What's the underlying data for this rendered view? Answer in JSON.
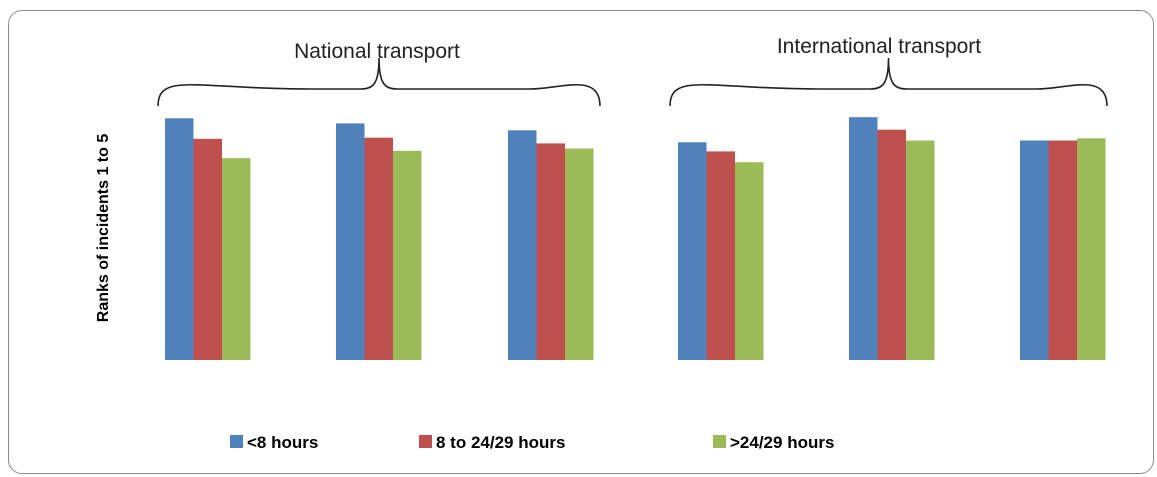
{
  "chart_data": {
    "type": "bar",
    "title": "",
    "xlabel": "",
    "ylabel": "Ranks of incidents 1 to 5",
    "ylim": [
      0,
      5
    ],
    "grid": false,
    "legend_position": "bottom",
    "categories": [
      "",
      "",
      "",
      "",
      "",
      ""
    ],
    "groups": [
      {
        "label": "National transport",
        "categories": [
          0,
          1,
          2
        ]
      },
      {
        "label": "International transport",
        "categories": [
          3,
          4,
          5
        ]
      }
    ],
    "series": [
      {
        "name": "<8 hours",
        "color": "#4f81bd",
        "values": [
          4.24,
          4.15,
          4.03,
          3.82,
          4.26,
          3.85
        ]
      },
      {
        "name": "8 to 24/29 hours",
        "color": "#c0504d",
        "values": [
          3.88,
          3.9,
          3.8,
          3.66,
          4.04,
          3.85
        ]
      },
      {
        "name": ">24/29 hours",
        "color": "#9bbb59",
        "values": [
          3.54,
          3.67,
          3.71,
          3.47,
          3.85,
          3.89
        ]
      }
    ]
  }
}
